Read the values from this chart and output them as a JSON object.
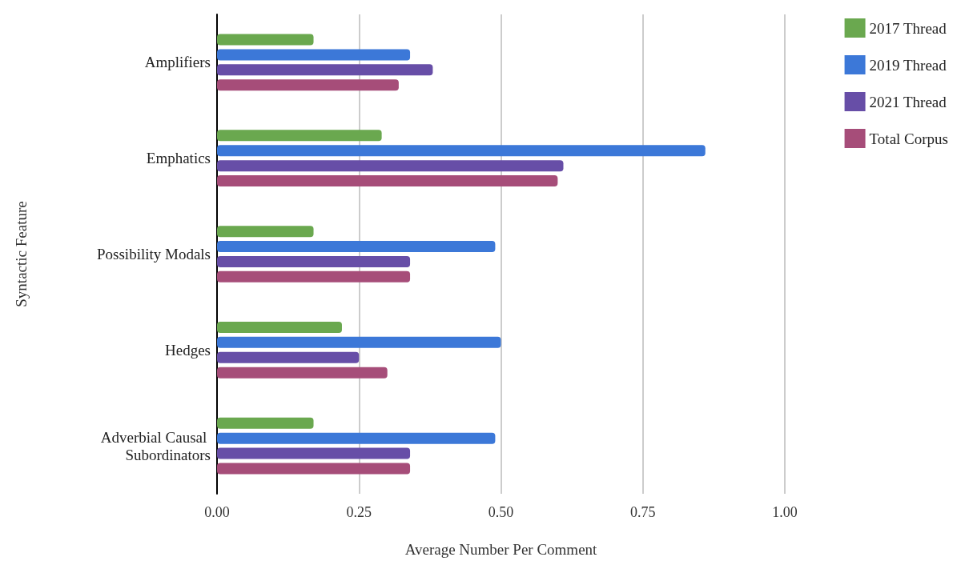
{
  "chart_data": {
    "type": "bar",
    "orientation": "horizontal",
    "xlabel": "Average Number Per Comment",
    "ylabel": "Syntactic Feature",
    "categories": [
      "Amplifiers",
      "Emphatics",
      "Possibility Modals",
      "Hedges",
      "Adverbial Causal Subordinators"
    ],
    "series": [
      {
        "name": "2017 Thread",
        "color": "#6aa84f",
        "values": [
          0.17,
          0.29,
          0.17,
          0.22,
          0.17
        ]
      },
      {
        "name": "2019 Thread",
        "color": "#3c78d8",
        "values": [
          0.34,
          0.86,
          0.49,
          0.5,
          0.49
        ]
      },
      {
        "name": "2021 Thread",
        "color": "#674ea7",
        "values": [
          0.38,
          0.61,
          0.34,
          0.25,
          0.34
        ]
      },
      {
        "name": "Total Corpus",
        "color": "#a64d79",
        "values": [
          0.32,
          0.6,
          0.34,
          0.3,
          0.34
        ]
      }
    ],
    "xlim": [
      0,
      1
    ],
    "xticks": [
      {
        "value": 0,
        "label": "0.00"
      },
      {
        "value": 0.25,
        "label": "0.25"
      },
      {
        "value": 0.5,
        "label": "0.50"
      },
      {
        "value": 0.75,
        "label": "0.75"
      },
      {
        "value": 1,
        "label": "1.00"
      }
    ],
    "grid": "x",
    "legend": "top right"
  }
}
